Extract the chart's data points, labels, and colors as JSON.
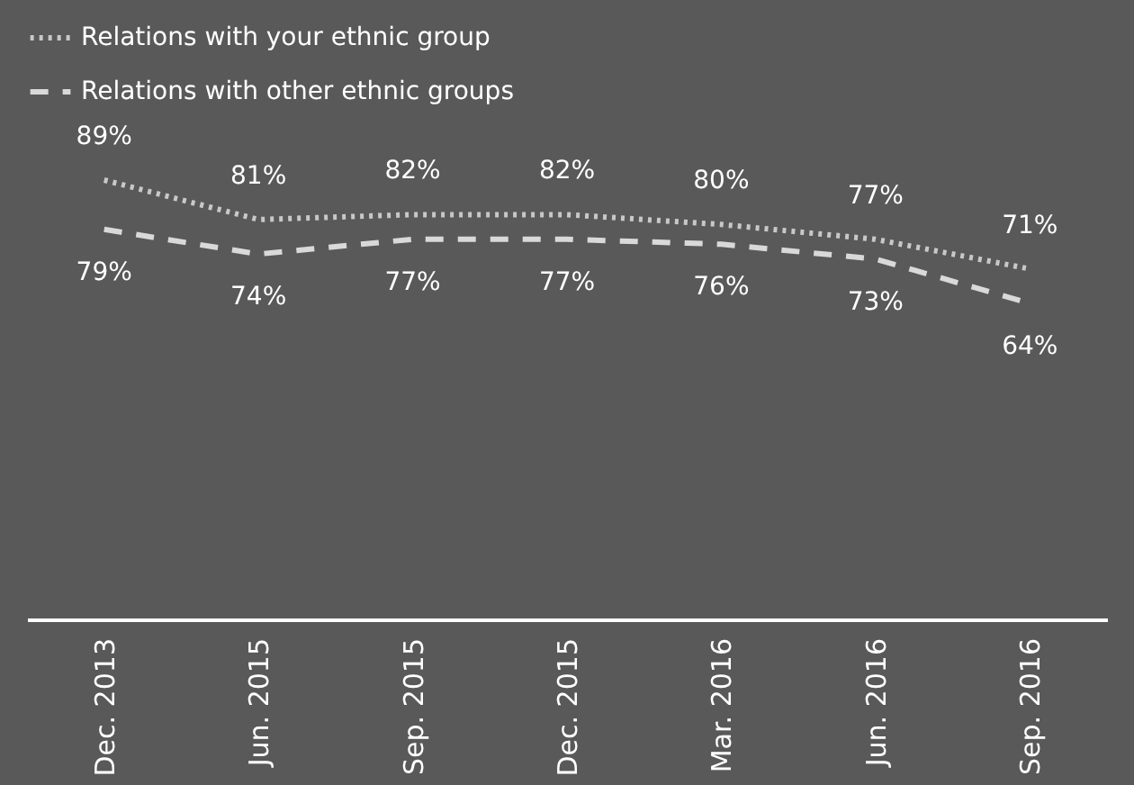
{
  "chart_data": {
    "type": "line",
    "categories": [
      "Dec. 2013",
      "Jun. 2015",
      "Sep. 2015",
      "Dec. 2015",
      "Mar. 2016",
      "Jun. 2016",
      "Sep. 2016"
    ],
    "series": [
      {
        "name": "Relations with your ethnic group",
        "color": "#c8c8c8",
        "line_style": "dotted",
        "values": [
          89,
          81,
          82,
          82,
          80,
          77,
          71
        ],
        "value_labels": [
          "89%",
          "81%",
          "82%",
          "82%",
          "80%",
          "77%",
          "71%"
        ]
      },
      {
        "name": "Relations with other ethnic groups",
        "color": "#d9d9d9",
        "line_style": "dashed",
        "values": [
          79,
          74,
          77,
          77,
          76,
          73,
          64
        ],
        "value_labels": [
          "79%",
          "74%",
          "77%",
          "77%",
          "76%",
          "73%",
          "64%"
        ]
      }
    ],
    "legend": "top",
    "marker": "none"
  }
}
